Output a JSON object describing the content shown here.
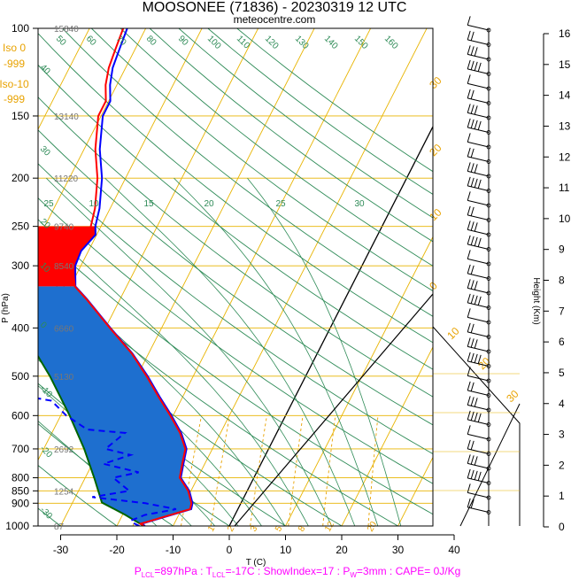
{
  "colors": {
    "temperature": "#ff0000",
    "dewpoint": "#0000ff",
    "virtual_temperature": "#0000ff",
    "frost_point": "#0000ff",
    "parcel": "#006400",
    "cape_fill": "#1e6fcf",
    "cin_fill": "#ff0000",
    "isotherm": "#e8b400",
    "dry_adiabat": "#2e8b57",
    "moist_adiabat": "#e8a200",
    "mixing_ratio": "#e8a200",
    "zero_line": "#000000",
    "freezing_level_text": "#e8a200",
    "footer_text": "#ff00ff",
    "height_text": "#777777"
  },
  "chart_data": {
    "type": "line",
    "title": "MOOSONEE (71836) - 20230319 12 UTC",
    "subtitle": "meteocentre.com",
    "xlabel": "T (C)",
    "ylabel": "P (hPa)",
    "right_ylabel": "Height (Km)",
    "x_ticks": [
      -30,
      -20,
      -10,
      0,
      10,
      20,
      30,
      40
    ],
    "y_ticks": [
      100,
      150,
      200,
      250,
      300,
      400,
      500,
      600,
      700,
      800,
      850,
      900,
      1000
    ],
    "height_ticks": [
      0,
      1,
      2,
      3,
      4,
      5,
      6,
      7,
      8,
      9,
      10,
      11,
      12,
      13,
      14,
      15,
      16
    ],
    "xlim": [
      -33,
      36
    ],
    "ylim": [
      1050,
      100
    ],
    "log_p": true,
    "skew": true,
    "height_labels": [
      {
        "p": 100,
        "text": "15840"
      },
      {
        "p": 150,
        "text": "13140"
      },
      {
        "p": 200,
        "text": "11220"
      },
      {
        "p": 250,
        "text": "9740"
      },
      {
        "p": 300,
        "text": "8540"
      },
      {
        "p": 400,
        "text": "6660"
      },
      {
        "p": 500,
        "text": "5130"
      },
      {
        "p": 700,
        "text": "2692"
      },
      {
        "p": 850,
        "text": "1254"
      },
      {
        "p": 1000,
        "text": "87"
      }
    ],
    "freezing_info": [
      {
        "label": "Iso 0",
        "value": "-999"
      },
      {
        "label": "Iso-10",
        "value": "-999"
      }
    ],
    "dry_adiabat_labels": [
      "50",
      "60",
      "70",
      "80",
      "90",
      "100",
      "110",
      "120",
      "130",
      "140",
      "150",
      "160"
    ],
    "left_dry_labels": [
      {
        "p": 120,
        "text": "40"
      },
      {
        "p": 175,
        "text": "30"
      },
      {
        "p": 245,
        "text": "20"
      },
      {
        "p": 300,
        "text": "10"
      },
      {
        "p": 395,
        "text": "0"
      },
      {
        "p": 530,
        "text": "-10"
      },
      {
        "p": 700,
        "text": "-20"
      },
      {
        "p": 930,
        "text": "-30"
      }
    ],
    "moist_top_labels": [
      "10",
      "15",
      "20",
      "25",
      "30"
    ],
    "moist_top_left_label": "25",
    "isotherm_right_labels": [
      "30",
      "20",
      "10",
      "0"
    ],
    "mixing_ratio_bottom_labels": [
      "1",
      "2",
      "3",
      "5",
      "8",
      "12",
      "20"
    ],
    "hodo_labels": [
      "10",
      "20",
      "30"
    ],
    "series": [
      {
        "name": "Temperature",
        "points": [
          [
            1000,
            -15.2
          ],
          [
            990,
            -16.0
          ],
          [
            975,
            -14.3
          ],
          [
            925,
            -8.5
          ],
          [
            900,
            -8.8
          ],
          [
            850,
            -10.5
          ],
          [
            800,
            -13.2
          ],
          [
            750,
            -14.0
          ],
          [
            700,
            -14.8
          ],
          [
            650,
            -17.2
          ],
          [
            600,
            -20.5
          ],
          [
            550,
            -24.3
          ],
          [
            500,
            -28.3
          ],
          [
            450,
            -33.0
          ],
          [
            400,
            -39.2
          ],
          [
            350,
            -46.0
          ],
          [
            330,
            -49.2
          ],
          [
            300,
            -51.5
          ],
          [
            280,
            -52.0
          ],
          [
            260,
            -51.0
          ],
          [
            250,
            -51.8
          ],
          [
            230,
            -52.7
          ],
          [
            200,
            -55.0
          ],
          [
            175,
            -58.0
          ],
          [
            150,
            -60.5
          ],
          [
            140,
            -60.5
          ],
          [
            130,
            -62.0
          ],
          [
            120,
            -63.0
          ],
          [
            110,
            -63.5
          ],
          [
            100,
            -64.0
          ]
        ]
      },
      {
        "name": "Virtual Temperature",
        "points": [
          [
            1000,
            -15.0
          ],
          [
            990,
            -15.8
          ],
          [
            975,
            -14.1
          ],
          [
            925,
            -8.3
          ],
          [
            900,
            -8.6
          ],
          [
            850,
            -10.3
          ],
          [
            800,
            -13.0
          ],
          [
            750,
            -13.8
          ],
          [
            700,
            -14.6
          ],
          [
            650,
            -17.0
          ],
          [
            600,
            -20.3
          ],
          [
            550,
            -24.1
          ],
          [
            500,
            -28.1
          ],
          [
            450,
            -32.9
          ],
          [
            400,
            -39.1
          ],
          [
            350,
            -45.9
          ],
          [
            330,
            -49.1
          ],
          [
            300,
            -51.0
          ],
          [
            280,
            -51.3
          ],
          [
            260,
            -50.2
          ],
          [
            250,
            -51.0
          ],
          [
            230,
            -51.9
          ],
          [
            200,
            -54.2
          ],
          [
            175,
            -57.2
          ],
          [
            150,
            -59.7
          ],
          [
            140,
            -59.7
          ],
          [
            130,
            -61.2
          ],
          [
            120,
            -62.3
          ],
          [
            110,
            -62.8
          ],
          [
            100,
            -63.3
          ]
        ]
      },
      {
        "name": "Dewpoint",
        "points": [
          [
            1000,
            -16.0
          ],
          [
            990,
            -17.0
          ],
          [
            975,
            -18.0
          ],
          [
            950,
            -16.0
          ],
          [
            925,
            -11.0
          ],
          [
            900,
            -17.0
          ],
          [
            875,
            -27.0
          ],
          [
            850,
            -21.0
          ],
          [
            800,
            -25.0
          ],
          [
            780,
            -21.0
          ],
          [
            750,
            -28.0
          ],
          [
            720,
            -24.0
          ],
          [
            700,
            -29.0
          ],
          [
            650,
            -27.0
          ],
          [
            640,
            -34.0
          ],
          [
            600,
            -39.0
          ],
          [
            560,
            -43.0
          ],
          [
            540,
            -52.0
          ],
          [
            500,
            -49.0
          ],
          [
            460,
            -52.0
          ],
          [
            400,
            -55.0
          ],
          [
            350,
            -63.0
          ],
          [
            300,
            -65.0
          ],
          [
            250,
            -66.0
          ],
          [
            200,
            -72.0
          ],
          [
            170,
            -74.0
          ],
          [
            150,
            -77.0
          ],
          [
            130,
            -82.0
          ],
          [
            110,
            -84.0
          ],
          [
            100,
            -84.0
          ]
        ]
      },
      {
        "name": "Parcel",
        "points": [
          [
            1000,
            -15.2
          ],
          [
            950,
            -19.5
          ],
          [
            897,
            -24.8
          ],
          [
            850,
            -26.5
          ],
          [
            800,
            -28.4
          ],
          [
            700,
            -32.8
          ],
          [
            600,
            -38.4
          ],
          [
            500,
            -45.5
          ],
          [
            400,
            -55.0
          ],
          [
            330,
            -63.5
          ],
          [
            300,
            -67.5
          ],
          [
            270,
            -71.0
          ],
          [
            250,
            -74.5
          ]
        ]
      }
    ],
    "footer": {
      "plcl": "897hPa",
      "tlcl": "-17C",
      "show_index": "17",
      "pw": "3mm",
      "cape": "0J/Kg"
    },
    "legend": "none",
    "grid": true
  }
}
